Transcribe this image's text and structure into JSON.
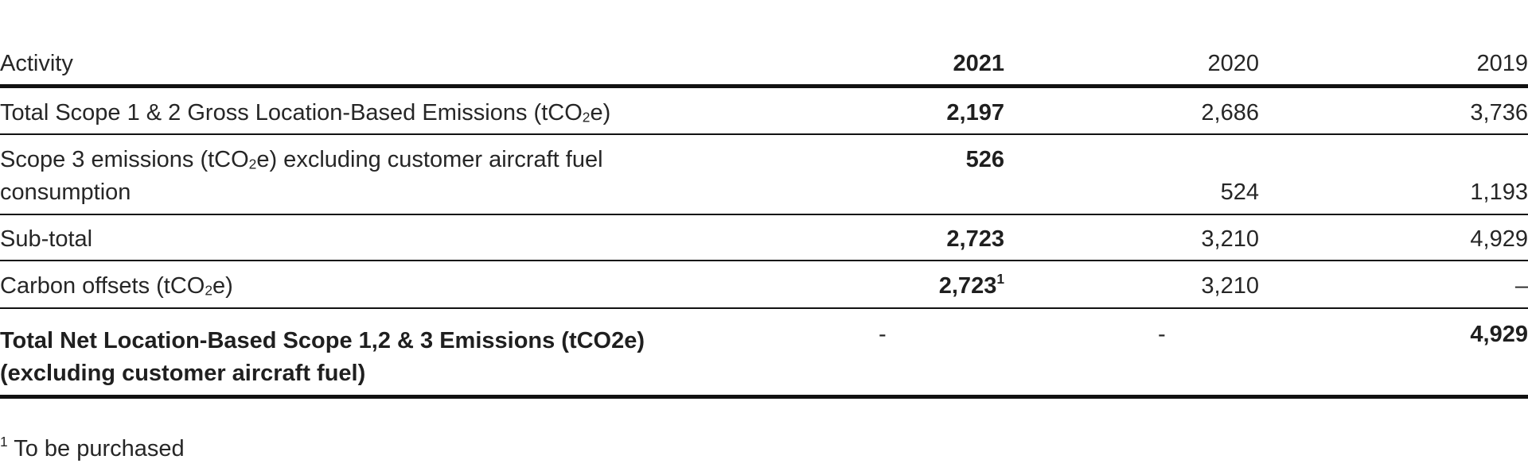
{
  "table": {
    "headers": {
      "activity": "Activity",
      "y2021": "2021",
      "y2020": "2020",
      "y2019": "2019"
    },
    "rows": [
      {
        "activity_pre": "Total Scope 1 & 2 Gross Location-Based Emissions (tCO",
        "activity_sub": "2",
        "activity_post": "e)",
        "y2021": "2,197",
        "y2020": "2,686",
        "y2019": "3,736"
      },
      {
        "activity_pre": "Scope 3 emissions (tCO",
        "activity_sub": "2",
        "activity_post": "e) excluding customer aircraft fuel",
        "activity_line2": "consumption",
        "y2021": "526",
        "y2020": "524",
        "y2019": "1,193"
      },
      {
        "activity": "Sub-total",
        "y2021": "2,723",
        "y2020": "3,210",
        "y2019": "4,929"
      },
      {
        "activity_pre": "Carbon offsets (tCO",
        "activity_sub": "2",
        "activity_post": "e)",
        "y2021": "2,723",
        "y2021_sup": "1",
        "y2020": "3,210",
        "y2019": "–"
      },
      {
        "activity_line1": "Total Net Location-Based Scope 1,2 & 3 Emissions (tCO2e)",
        "activity_line2": "(excluding customer aircraft fuel)",
        "y2021": "-",
        "y2020": "-",
        "y2019": "4,929"
      }
    ]
  },
  "footnote": {
    "marker": "1",
    "text": " To be purchased"
  }
}
